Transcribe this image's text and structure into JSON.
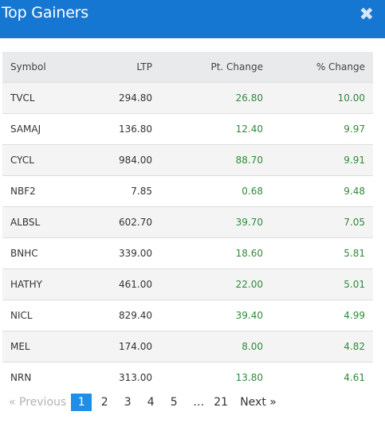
{
  "header": {
    "title": "Top Gainers",
    "close_glyph": "✖"
  },
  "table": {
    "columns": [
      "Symbol",
      "LTP",
      "Pt. Change",
      "% Change"
    ],
    "rows": [
      [
        "TVCL",
        "294.80",
        "26.80",
        "10.00"
      ],
      [
        "SAMAJ",
        "136.80",
        "12.40",
        "9.97"
      ],
      [
        "CYCL",
        "984.00",
        "88.70",
        "9.91"
      ],
      [
        "NBF2",
        "7.85",
        "0.68",
        "9.48"
      ],
      [
        "ALBSL",
        "602.70",
        "39.70",
        "7.05"
      ],
      [
        "BNHC",
        "339.00",
        "18.60",
        "5.81"
      ],
      [
        "HATHY",
        "461.00",
        "22.00",
        "5.01"
      ],
      [
        "NICL",
        "829.40",
        "39.40",
        "4.99"
      ],
      [
        "MEL",
        "174.00",
        "8.00",
        "4.82"
      ],
      [
        "NRN",
        "313.00",
        "13.80",
        "4.61"
      ]
    ]
  },
  "pagination": {
    "previous": "« Previous",
    "pages": [
      "1",
      "2",
      "3",
      "4",
      "5"
    ],
    "ellipsis": "…",
    "last_page": "21",
    "next": "Next »",
    "current": "1"
  },
  "colors": {
    "header": "#1677d2",
    "gain": "#2e8b38",
    "active_page": "#1f8ee6"
  }
}
